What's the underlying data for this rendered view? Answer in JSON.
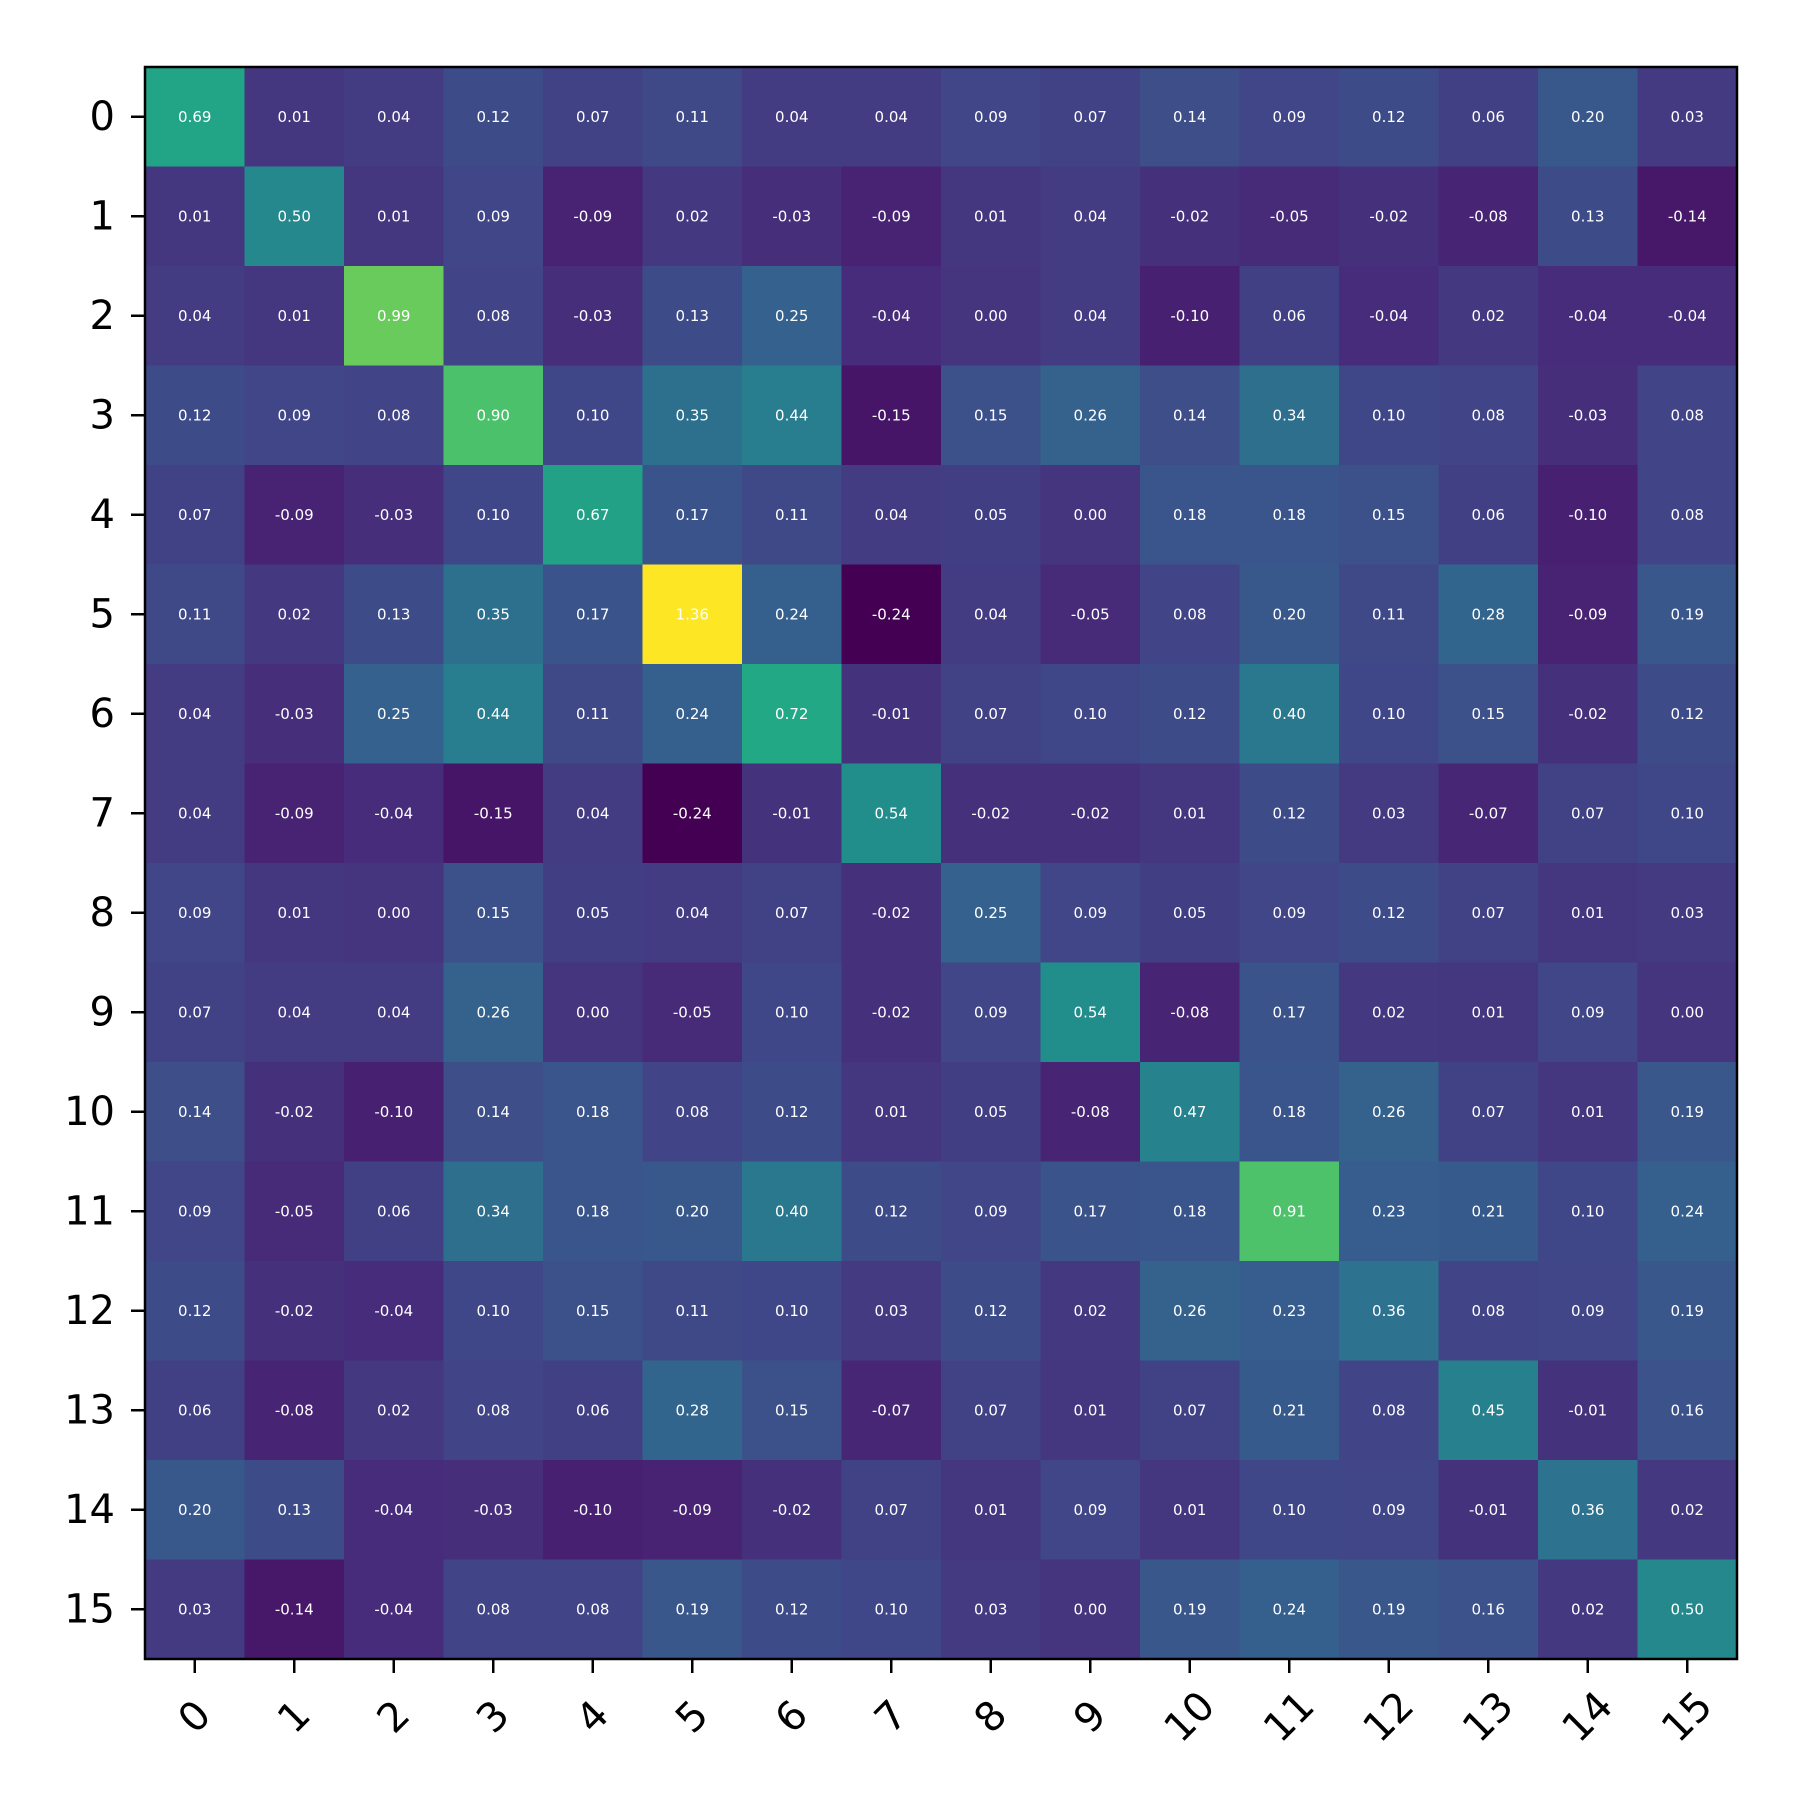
{
  "chart_data": {
    "type": "heatmap",
    "title": "",
    "xlabel": "",
    "ylabel": "",
    "x_categories": [
      "0",
      "1",
      "2",
      "3",
      "4",
      "5",
      "6",
      "7",
      "8",
      "9",
      "10",
      "11",
      "12",
      "13",
      "14",
      "15"
    ],
    "y_categories": [
      "0",
      "1",
      "2",
      "3",
      "4",
      "5",
      "6",
      "7",
      "8",
      "9",
      "10",
      "11",
      "12",
      "13",
      "14",
      "15"
    ],
    "colormap": "viridis",
    "value_range": [
      -0.24,
      1.36
    ],
    "x_tick_rotation_deg": 45,
    "label_color": "#ffffff",
    "grid": false,
    "legend": "none",
    "values": [
      [
        0.69,
        0.01,
        0.04,
        0.12,
        0.07,
        0.11,
        0.04,
        0.04,
        0.09,
        0.07,
        0.14,
        0.09,
        0.12,
        0.06,
        0.2,
        0.03
      ],
      [
        0.01,
        0.5,
        0.01,
        0.09,
        -0.09,
        0.02,
        -0.03,
        -0.09,
        0.01,
        0.04,
        -0.02,
        -0.05,
        -0.02,
        -0.08,
        0.13,
        -0.14
      ],
      [
        0.04,
        0.01,
        0.99,
        0.08,
        -0.03,
        0.13,
        0.25,
        -0.04,
        -0.0,
        0.04,
        -0.1,
        0.06,
        -0.04,
        0.02,
        -0.04,
        -0.04
      ],
      [
        0.12,
        0.09,
        0.08,
        0.9,
        0.1,
        0.35,
        0.44,
        -0.15,
        0.15,
        0.26,
        0.14,
        0.34,
        0.1,
        0.08,
        -0.03,
        0.08
      ],
      [
        0.07,
        -0.09,
        -0.03,
        0.1,
        0.67,
        0.17,
        0.11,
        0.04,
        0.05,
        0.0,
        0.18,
        0.18,
        0.15,
        0.06,
        -0.1,
        0.08
      ],
      [
        0.11,
        0.02,
        0.13,
        0.35,
        0.17,
        1.36,
        0.24,
        -0.24,
        0.04,
        -0.05,
        0.08,
        0.2,
        0.11,
        0.28,
        -0.09,
        0.19
      ],
      [
        0.04,
        -0.03,
        0.25,
        0.44,
        0.11,
        0.24,
        0.72,
        -0.01,
        0.07,
        0.1,
        0.12,
        0.4,
        0.1,
        0.15,
        -0.02,
        0.12
      ],
      [
        0.04,
        -0.09,
        -0.04,
        -0.15,
        0.04,
        -0.24,
        -0.01,
        0.54,
        -0.02,
        -0.02,
        0.01,
        0.12,
        0.03,
        -0.07,
        0.07,
        0.1
      ],
      [
        0.09,
        0.01,
        -0.0,
        0.15,
        0.05,
        0.04,
        0.07,
        -0.02,
        0.25,
        0.09,
        0.05,
        0.09,
        0.12,
        0.07,
        0.01,
        0.03
      ],
      [
        0.07,
        0.04,
        0.04,
        0.26,
        0.0,
        -0.05,
        0.1,
        -0.02,
        0.09,
        0.54,
        -0.08,
        0.17,
        0.02,
        0.01,
        0.09,
        0.0
      ],
      [
        0.14,
        -0.02,
        -0.1,
        0.14,
        0.18,
        0.08,
        0.12,
        0.01,
        0.05,
        -0.08,
        0.47,
        0.18,
        0.26,
        0.07,
        0.01,
        0.19
      ],
      [
        0.09,
        -0.05,
        0.06,
        0.34,
        0.18,
        0.2,
        0.4,
        0.12,
        0.09,
        0.17,
        0.18,
        0.91,
        0.23,
        0.21,
        0.1,
        0.24
      ],
      [
        0.12,
        -0.02,
        -0.04,
        0.1,
        0.15,
        0.11,
        0.1,
        0.03,
        0.12,
        0.02,
        0.26,
        0.23,
        0.36,
        0.08,
        0.09,
        0.19
      ],
      [
        0.06,
        -0.08,
        0.02,
        0.08,
        0.06,
        0.28,
        0.15,
        -0.07,
        0.07,
        0.01,
        0.07,
        0.21,
        0.08,
        0.45,
        -0.01,
        0.16
      ],
      [
        0.2,
        0.13,
        -0.04,
        -0.03,
        -0.1,
        -0.09,
        -0.02,
        0.07,
        0.01,
        0.09,
        0.01,
        0.1,
        0.09,
        -0.01,
        0.36,
        0.02
      ],
      [
        0.03,
        -0.14,
        -0.04,
        0.08,
        0.08,
        0.19,
        0.12,
        0.1,
        0.03,
        0.0,
        0.19,
        0.24,
        0.19,
        0.16,
        0.02,
        0.5
      ]
    ]
  }
}
